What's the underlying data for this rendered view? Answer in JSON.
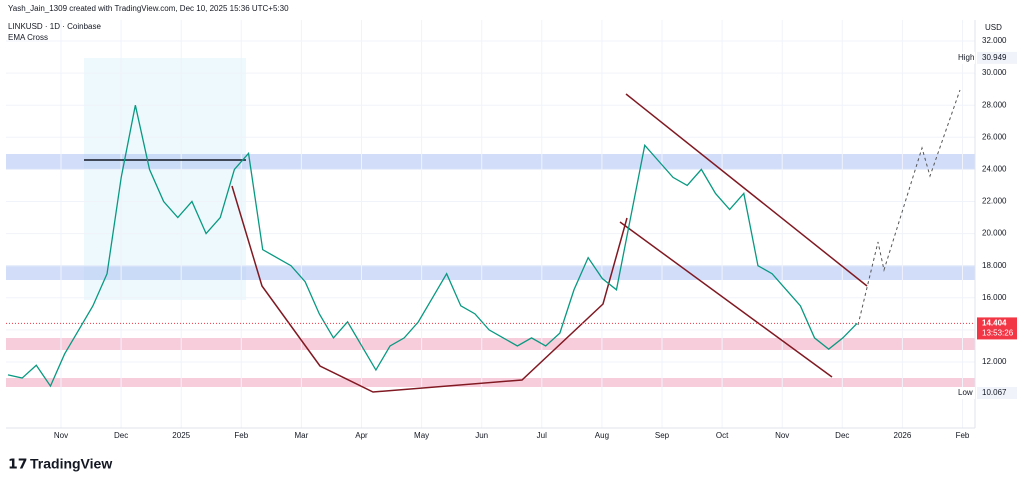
{
  "header": {
    "credit": "Yash_Jain_1309 created with TradingView.com, Dec 10, 2025 15:36 UTC+5:30",
    "symbol": "LINKUSD · 1D · Coinbase",
    "indicator": "EMA Cross",
    "currency": "USD",
    "brand": "TradingView"
  },
  "chart_data": {
    "type": "line",
    "name": "LINKUSD",
    "values": [
      11.2,
      11.0,
      11.8,
      10.5,
      12.5,
      14.0,
      15.5,
      17.5,
      23.5,
      28.0,
      24.0,
      22.0,
      21.0,
      22.0,
      20.0,
      21.0,
      24.0,
      25.0,
      19.0,
      18.5,
      18.0,
      17.0,
      15.0,
      13.5,
      14.5,
      13.0,
      11.5,
      13.0,
      13.5,
      14.5,
      16.0,
      17.5,
      15.5,
      15.0,
      14.0,
      13.5,
      13.0,
      13.5,
      13.0,
      13.8,
      16.5,
      18.5,
      17.2,
      16.5,
      21.0,
      25.5,
      24.5,
      23.5,
      23.0,
      24.0,
      22.5,
      21.5,
      22.5,
      18.0,
      17.5,
      16.5,
      15.5,
      13.5,
      12.8,
      13.5,
      14.404
    ],
    "color": "#089981",
    "ylim": [
      9,
      33
    ],
    "yticks": [
      12,
      14,
      16,
      18,
      20,
      22,
      24,
      26,
      28,
      30,
      32
    ],
    "ytick_labels": [
      "12.000",
      "14.000",
      "16.000",
      "18.000",
      "20.000",
      "22.000",
      "24.000",
      "26.000",
      "28.000",
      "30.000",
      "32.000"
    ],
    "xtick_labels": [
      "Nov",
      "Dec",
      "2025",
      "Feb",
      "Mar",
      "Apr",
      "May",
      "Jun",
      "Jul",
      "Aug",
      "Sep",
      "Oct",
      "Nov",
      "Dec",
      "2026",
      "Feb"
    ],
    "high": {
      "label": "High",
      "value": 30.949
    },
    "low": {
      "label": "Low",
      "value": 10.067
    },
    "last": {
      "value": 14.404,
      "countdown": "13:53:26"
    },
    "grid": true
  }
}
